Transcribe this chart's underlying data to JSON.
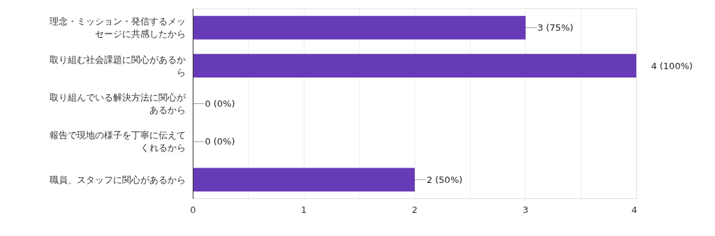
{
  "chart_data": {
    "type": "bar",
    "orientation": "horizontal",
    "categories": [
      "理念・ミッション・発信するメッセージに共感したから",
      "取り組む社会課題に関心があるから",
      "取り組んでいる解決方法に関心があるから",
      "報告で現地の様子を丁寧に伝えてくれるから",
      "職員、スタッフに関心があるから"
    ],
    "values": [
      3,
      4,
      0,
      0,
      2
    ],
    "color": "#673ab7",
    "value_labels": [
      "3 (75%)",
      "4 (100%)",
      "0 (0%)",
      "0 (0%)",
      "2 (50%)"
    ],
    "xlim": [
      0,
      4
    ],
    "xticks": [
      0,
      {
        "value": 0.5,
        "label": null
      },
      1,
      {
        "value": 1.5,
        "label": null
      },
      2,
      {
        "value": 2.5,
        "label": null
      },
      3,
      {
        "value": 3.5,
        "label": null
      },
      4
    ],
    "grid": "x"
  }
}
